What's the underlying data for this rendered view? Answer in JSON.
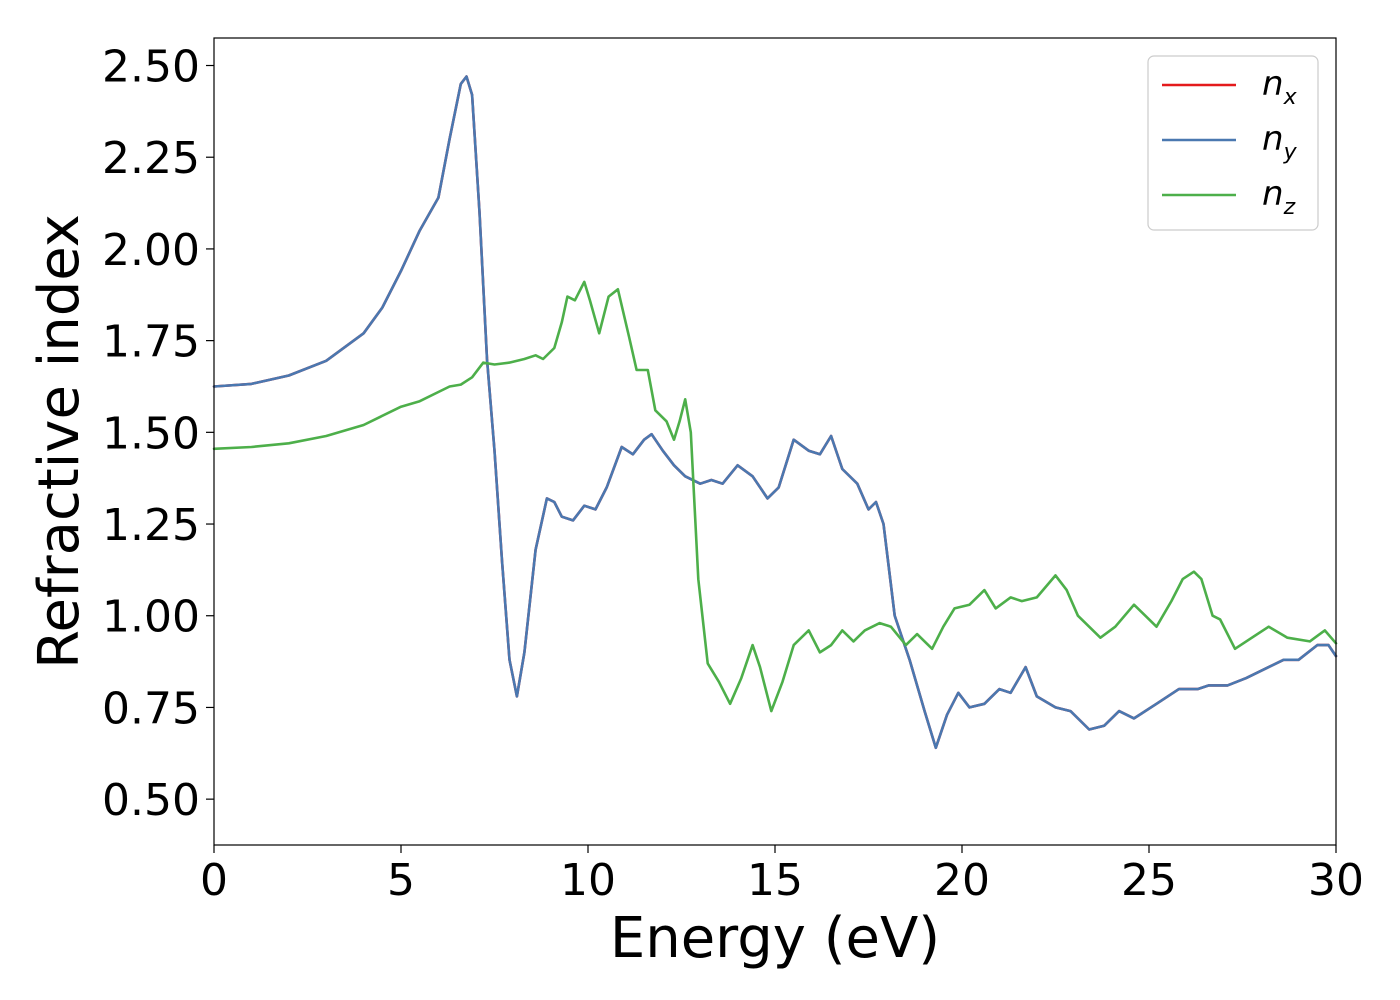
{
  "chart_data": {
    "type": "line",
    "title": "",
    "xlabel": "Energy (eV)",
    "ylabel": "Refractive index",
    "xlim": [
      0,
      30
    ],
    "ylim": [
      0.375,
      2.575
    ],
    "x_ticks": [
      0,
      5,
      10,
      15,
      20,
      25,
      30
    ],
    "x_tick_labels": [
      "0",
      "5",
      "10",
      "15",
      "20",
      "25",
      "30"
    ],
    "y_ticks": [
      0.5,
      0.75,
      1.0,
      1.25,
      1.5,
      1.75,
      2.0,
      2.25,
      2.5
    ],
    "y_tick_labels": [
      "0.50",
      "0.75",
      "1.00",
      "1.25",
      "1.50",
      "1.75",
      "2.00",
      "2.25",
      "2.50"
    ],
    "grid": false,
    "legend_position": "top-right",
    "series": [
      {
        "name": "n",
        "subscript": "x",
        "color": "#e41a1c",
        "points": [
          [
            0,
            1.625
          ],
          [
            1,
            1.632
          ],
          [
            2,
            1.655
          ],
          [
            3,
            1.695
          ],
          [
            4,
            1.77
          ],
          [
            4.5,
            1.84
          ],
          [
            5,
            1.94
          ],
          [
            5.5,
            2.05
          ],
          [
            6,
            2.14
          ],
          [
            6.3,
            2.3
          ],
          [
            6.6,
            2.45
          ],
          [
            6.75,
            2.47
          ],
          [
            6.9,
            2.42
          ],
          [
            7.1,
            2.1
          ],
          [
            7.3,
            1.7
          ],
          [
            7.5,
            1.45
          ],
          [
            7.7,
            1.15
          ],
          [
            7.9,
            0.88
          ],
          [
            8.1,
            0.78
          ],
          [
            8.3,
            0.9
          ],
          [
            8.6,
            1.18
          ],
          [
            8.9,
            1.32
          ],
          [
            9.1,
            1.31
          ],
          [
            9.3,
            1.27
          ],
          [
            9.6,
            1.26
          ],
          [
            9.9,
            1.3
          ],
          [
            10.2,
            1.29
          ],
          [
            10.5,
            1.35
          ],
          [
            10.9,
            1.46
          ],
          [
            11.2,
            1.44
          ],
          [
            11.5,
            1.48
          ],
          [
            11.7,
            1.495
          ],
          [
            12,
            1.45
          ],
          [
            12.3,
            1.41
          ],
          [
            12.6,
            1.38
          ],
          [
            13,
            1.36
          ],
          [
            13.3,
            1.37
          ],
          [
            13.6,
            1.36
          ],
          [
            14,
            1.41
          ],
          [
            14.4,
            1.38
          ],
          [
            14.8,
            1.32
          ],
          [
            15.1,
            1.35
          ],
          [
            15.5,
            1.48
          ],
          [
            15.9,
            1.45
          ],
          [
            16.2,
            1.44
          ],
          [
            16.5,
            1.49
          ],
          [
            16.8,
            1.4
          ],
          [
            17.2,
            1.36
          ],
          [
            17.5,
            1.29
          ],
          [
            17.7,
            1.31
          ],
          [
            17.9,
            1.25
          ],
          [
            18.2,
            1.0
          ],
          [
            18.6,
            0.88
          ],
          [
            19,
            0.74
          ],
          [
            19.3,
            0.64
          ],
          [
            19.6,
            0.73
          ],
          [
            19.9,
            0.79
          ],
          [
            20.2,
            0.75
          ],
          [
            20.6,
            0.76
          ],
          [
            21,
            0.8
          ],
          [
            21.3,
            0.79
          ],
          [
            21.7,
            0.86
          ],
          [
            22,
            0.78
          ],
          [
            22.5,
            0.75
          ],
          [
            22.9,
            0.74
          ],
          [
            23.4,
            0.69
          ],
          [
            23.8,
            0.7
          ],
          [
            24.2,
            0.74
          ],
          [
            24.6,
            0.72
          ],
          [
            25.2,
            0.76
          ],
          [
            25.8,
            0.8
          ],
          [
            26.3,
            0.8
          ],
          [
            26.6,
            0.81
          ],
          [
            27.1,
            0.81
          ],
          [
            27.6,
            0.83
          ],
          [
            28.2,
            0.86
          ],
          [
            28.6,
            0.88
          ],
          [
            29,
            0.88
          ],
          [
            29.5,
            0.92
          ],
          [
            29.8,
            0.92
          ],
          [
            30,
            0.89
          ]
        ]
      },
      {
        "name": "n",
        "subscript": "y",
        "color": "#4a78b0",
        "points": [
          [
            0,
            1.625
          ],
          [
            1,
            1.632
          ],
          [
            2,
            1.655
          ],
          [
            3,
            1.695
          ],
          [
            4,
            1.77
          ],
          [
            4.5,
            1.84
          ],
          [
            5,
            1.94
          ],
          [
            5.5,
            2.05
          ],
          [
            6,
            2.14
          ],
          [
            6.3,
            2.3
          ],
          [
            6.6,
            2.45
          ],
          [
            6.75,
            2.47
          ],
          [
            6.9,
            2.42
          ],
          [
            7.1,
            2.1
          ],
          [
            7.3,
            1.7
          ],
          [
            7.5,
            1.45
          ],
          [
            7.7,
            1.15
          ],
          [
            7.9,
            0.88
          ],
          [
            8.1,
            0.78
          ],
          [
            8.3,
            0.9
          ],
          [
            8.6,
            1.18
          ],
          [
            8.9,
            1.32
          ],
          [
            9.1,
            1.31
          ],
          [
            9.3,
            1.27
          ],
          [
            9.6,
            1.26
          ],
          [
            9.9,
            1.3
          ],
          [
            10.2,
            1.29
          ],
          [
            10.5,
            1.35
          ],
          [
            10.9,
            1.46
          ],
          [
            11.2,
            1.44
          ],
          [
            11.5,
            1.48
          ],
          [
            11.7,
            1.495
          ],
          [
            12,
            1.45
          ],
          [
            12.3,
            1.41
          ],
          [
            12.6,
            1.38
          ],
          [
            13,
            1.36
          ],
          [
            13.3,
            1.37
          ],
          [
            13.6,
            1.36
          ],
          [
            14,
            1.41
          ],
          [
            14.4,
            1.38
          ],
          [
            14.8,
            1.32
          ],
          [
            15.1,
            1.35
          ],
          [
            15.5,
            1.48
          ],
          [
            15.9,
            1.45
          ],
          [
            16.2,
            1.44
          ],
          [
            16.5,
            1.49
          ],
          [
            16.8,
            1.4
          ],
          [
            17.2,
            1.36
          ],
          [
            17.5,
            1.29
          ],
          [
            17.7,
            1.31
          ],
          [
            17.9,
            1.25
          ],
          [
            18.2,
            1.0
          ],
          [
            18.6,
            0.88
          ],
          [
            19,
            0.74
          ],
          [
            19.3,
            0.64
          ],
          [
            19.6,
            0.73
          ],
          [
            19.9,
            0.79
          ],
          [
            20.2,
            0.75
          ],
          [
            20.6,
            0.76
          ],
          [
            21,
            0.8
          ],
          [
            21.3,
            0.79
          ],
          [
            21.7,
            0.86
          ],
          [
            22,
            0.78
          ],
          [
            22.5,
            0.75
          ],
          [
            22.9,
            0.74
          ],
          [
            23.4,
            0.69
          ],
          [
            23.8,
            0.7
          ],
          [
            24.2,
            0.74
          ],
          [
            24.6,
            0.72
          ],
          [
            25.2,
            0.76
          ],
          [
            25.8,
            0.8
          ],
          [
            26.3,
            0.8
          ],
          [
            26.6,
            0.81
          ],
          [
            27.1,
            0.81
          ],
          [
            27.6,
            0.83
          ],
          [
            28.2,
            0.86
          ],
          [
            28.6,
            0.88
          ],
          [
            29,
            0.88
          ],
          [
            29.5,
            0.92
          ],
          [
            29.8,
            0.92
          ],
          [
            30,
            0.89
          ]
        ]
      },
      {
        "name": "n",
        "subscript": "z",
        "color": "#4daf4a",
        "points": [
          [
            0,
            1.455
          ],
          [
            1,
            1.46
          ],
          [
            2,
            1.47
          ],
          [
            3,
            1.49
          ],
          [
            4,
            1.52
          ],
          [
            5,
            1.57
          ],
          [
            5.5,
            1.585
          ],
          [
            6,
            1.61
          ],
          [
            6.3,
            1.625
          ],
          [
            6.6,
            1.63
          ],
          [
            6.9,
            1.65
          ],
          [
            7.2,
            1.69
          ],
          [
            7.5,
            1.685
          ],
          [
            7.9,
            1.69
          ],
          [
            8.3,
            1.7
          ],
          [
            8.6,
            1.71
          ],
          [
            8.8,
            1.7
          ],
          [
            9.1,
            1.73
          ],
          [
            9.3,
            1.8
          ],
          [
            9.45,
            1.87
          ],
          [
            9.65,
            1.86
          ],
          [
            9.9,
            1.91
          ],
          [
            10.05,
            1.86
          ],
          [
            10.3,
            1.77
          ],
          [
            10.55,
            1.87
          ],
          [
            10.8,
            1.89
          ],
          [
            11.1,
            1.76
          ],
          [
            11.3,
            1.67
          ],
          [
            11.6,
            1.67
          ],
          [
            11.8,
            1.56
          ],
          [
            12.1,
            1.53
          ],
          [
            12.3,
            1.48
          ],
          [
            12.45,
            1.53
          ],
          [
            12.6,
            1.59
          ],
          [
            12.75,
            1.5
          ],
          [
            12.95,
            1.1
          ],
          [
            13.2,
            0.87
          ],
          [
            13.5,
            0.82
          ],
          [
            13.8,
            0.76
          ],
          [
            14.1,
            0.83
          ],
          [
            14.4,
            0.92
          ],
          [
            14.6,
            0.86
          ],
          [
            14.9,
            0.74
          ],
          [
            15.2,
            0.82
          ],
          [
            15.5,
            0.92
          ],
          [
            15.9,
            0.96
          ],
          [
            16.2,
            0.9
          ],
          [
            16.5,
            0.92
          ],
          [
            16.8,
            0.96
          ],
          [
            17.1,
            0.93
          ],
          [
            17.4,
            0.96
          ],
          [
            17.8,
            0.98
          ],
          [
            18.1,
            0.97
          ],
          [
            18.5,
            0.92
          ],
          [
            18.8,
            0.95
          ],
          [
            19.2,
            0.91
          ],
          [
            19.5,
            0.97
          ],
          [
            19.8,
            1.02
          ],
          [
            20.2,
            1.03
          ],
          [
            20.6,
            1.07
          ],
          [
            20.9,
            1.02
          ],
          [
            21.3,
            1.05
          ],
          [
            21.6,
            1.04
          ],
          [
            22,
            1.05
          ],
          [
            22.5,
            1.11
          ],
          [
            22.8,
            1.07
          ],
          [
            23.1,
            1.0
          ],
          [
            23.7,
            0.94
          ],
          [
            24.1,
            0.97
          ],
          [
            24.6,
            1.03
          ],
          [
            24.9,
            1.0
          ],
          [
            25.2,
            0.97
          ],
          [
            25.6,
            1.04
          ],
          [
            25.9,
            1.1
          ],
          [
            26.2,
            1.12
          ],
          [
            26.4,
            1.1
          ],
          [
            26.7,
            1.0
          ],
          [
            26.9,
            0.99
          ],
          [
            27.3,
            0.91
          ],
          [
            27.6,
            0.93
          ],
          [
            28.2,
            0.97
          ],
          [
            28.7,
            0.94
          ],
          [
            29.3,
            0.93
          ],
          [
            29.7,
            0.96
          ],
          [
            30,
            0.925
          ]
        ]
      }
    ]
  }
}
